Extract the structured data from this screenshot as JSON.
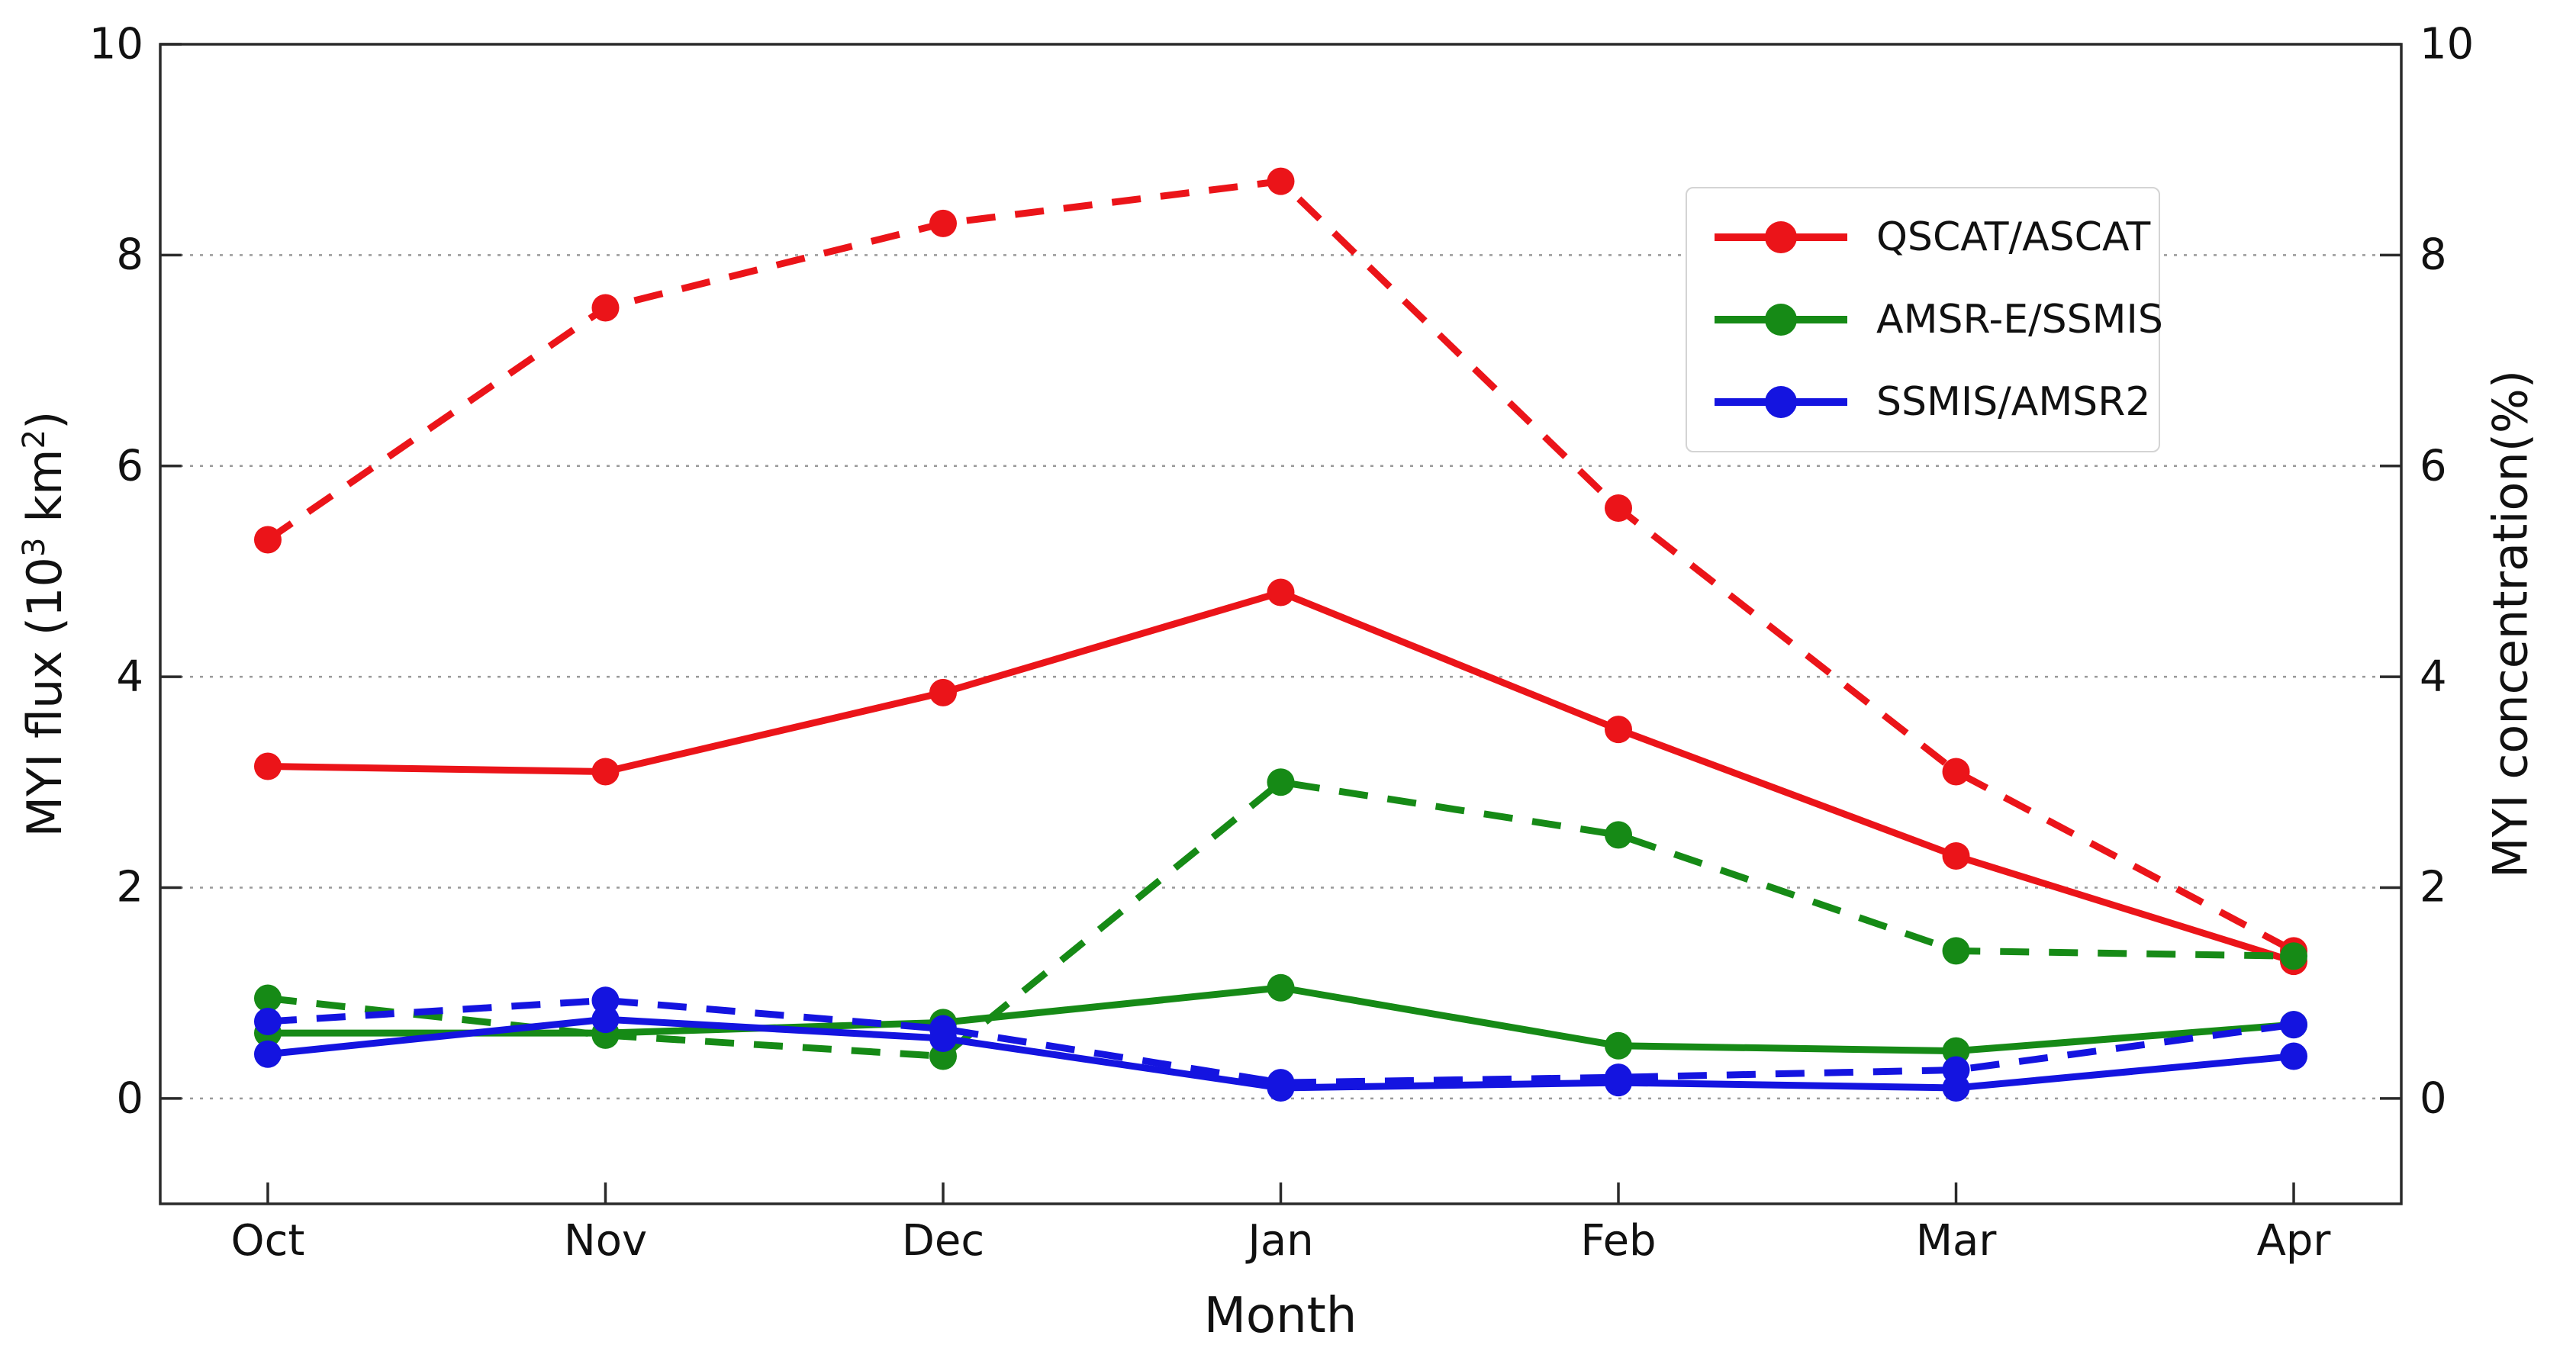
{
  "chart_data": {
    "type": "line",
    "title": "",
    "categories": [
      "Oct",
      "Nov",
      "Dec",
      "Jan",
      "Feb",
      "Mar",
      "Apr"
    ],
    "xlabel": "Month",
    "ylabel_left": "MYI flux (10^3 km^2)",
    "ylabel_right": "MYI concentration(%)",
    "ylim": [
      -1,
      10
    ],
    "y_ticks": [
      0,
      2,
      4,
      6,
      8,
      10
    ],
    "grid": "horizontal dotted gridlines at y ticks",
    "legend_position": "upper right",
    "line_style_meaning": {
      "solid": "MYI flux (left axis)",
      "dashed": "MYI concentration (right axis)"
    },
    "series": [
      {
        "name": "QSCAT/ASCAT",
        "color": "#eb1419",
        "flux_solid": [
          3.15,
          3.1,
          3.85,
          4.8,
          3.5,
          2.3,
          1.3
        ],
        "concentration_dashed": [
          5.3,
          7.5,
          8.3,
          8.7,
          5.6,
          3.1,
          1.4
        ]
      },
      {
        "name": "AMSR-E/SSMIS",
        "color": "#168a16",
        "flux_solid": [
          0.62,
          0.62,
          0.72,
          1.05,
          0.5,
          0.45,
          0.7
        ],
        "concentration_dashed": [
          0.95,
          0.6,
          0.4,
          3.0,
          2.5,
          1.4,
          1.35
        ]
      },
      {
        "name": "SSMIS/AMSR2",
        "color": "#1414e0",
        "flux_solid": [
          0.42,
          0.75,
          0.57,
          0.1,
          0.15,
          0.1,
          0.4
        ],
        "concentration_dashed": [
          0.73,
          0.93,
          0.66,
          0.15,
          0.2,
          0.27,
          0.7
        ]
      }
    ]
  },
  "axes_text": {
    "left_label_pre": "MYI flux (10",
    "left_label_sup1": "3",
    "left_label_mid": " km",
    "left_label_sup2": "2",
    "left_label_post": ")",
    "right_label": "MYI concentration(%)",
    "x_label": "Month"
  },
  "style": {
    "grid_color": "#999999",
    "spine_color": "#2a2a2a",
    "background": "#ffffff"
  }
}
